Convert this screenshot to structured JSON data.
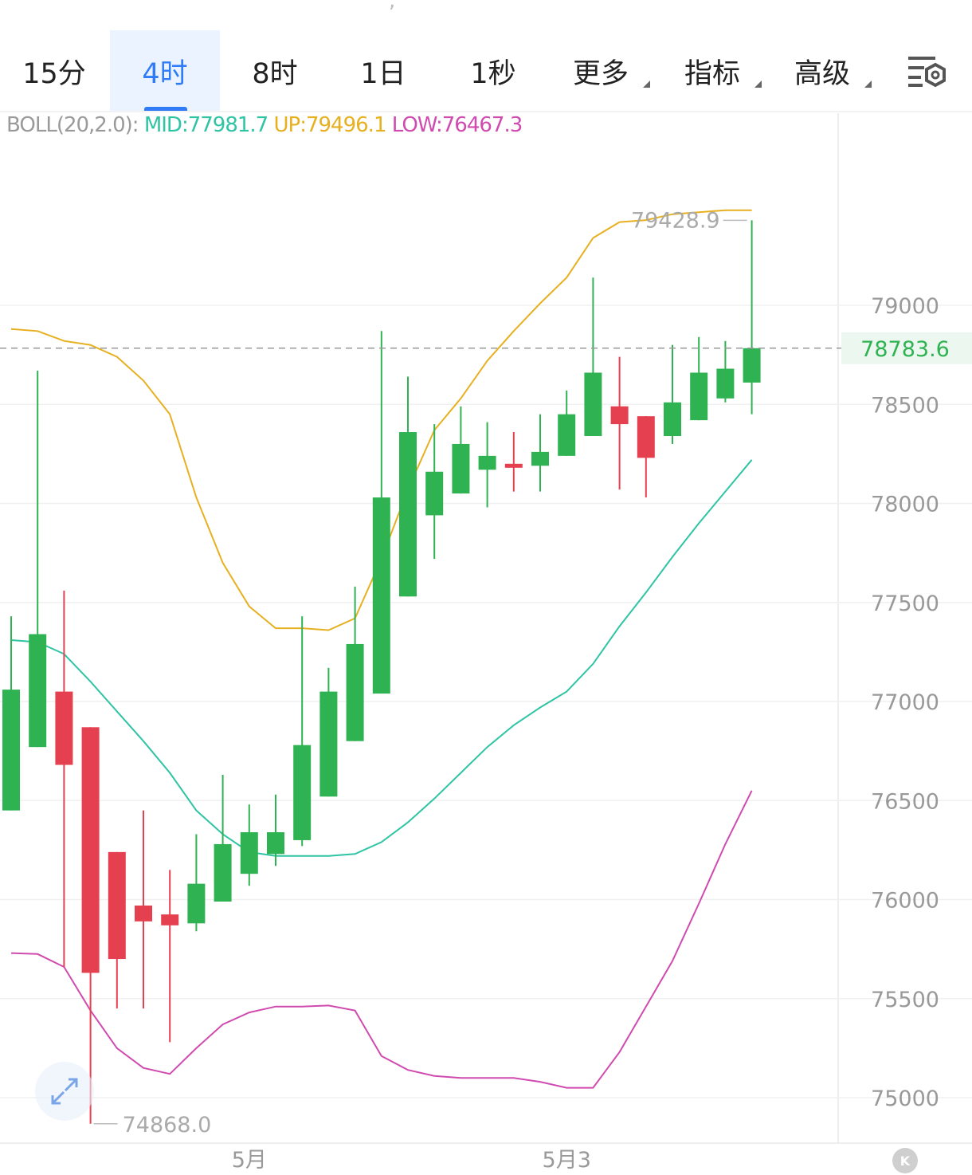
{
  "top_fragment": ",",
  "tabs": [
    {
      "label": "15分",
      "active": false,
      "dropdown": false
    },
    {
      "label": "4时",
      "active": true,
      "dropdown": false
    },
    {
      "label": "8时",
      "active": false,
      "dropdown": false
    },
    {
      "label": "1日",
      "active": false,
      "dropdown": false
    },
    {
      "label": "1秒",
      "active": false,
      "dropdown": false
    },
    {
      "label": "更多",
      "active": false,
      "dropdown": true
    },
    {
      "label": "指标",
      "active": false,
      "dropdown": true
    },
    {
      "label": "高级",
      "active": false,
      "dropdown": true
    }
  ],
  "settings_icon": "chart-settings-icon",
  "indicator": {
    "name": "BOLL(20,2.0):",
    "mid": "MID:77981.7",
    "up": "UP:79496.1",
    "low": "LOW:76467.3",
    "colors": {
      "name": "#9a9a9a",
      "mid": "#2ec4a4",
      "up": "#e6b020",
      "low": "#d04bb0"
    }
  },
  "expand_icon": "expand-arrows-icon",
  "badge_label": "K",
  "chart_data": {
    "type": "candlestick",
    "ylim": [
      74600,
      80350
    ],
    "yticks": [
      75000,
      75500,
      76000,
      76500,
      77000,
      77500,
      78000,
      78500,
      79000
    ],
    "ytick_labels": [
      "75000",
      "75500",
      "76000",
      "76500",
      "77000",
      "77500",
      "78000",
      "78500",
      "79000"
    ],
    "x_labels": [
      {
        "label": "5月",
        "index": 9
      },
      {
        "label": "5月3",
        "index": 21
      }
    ],
    "current_price": 78783.6,
    "current_price_label": "78783.6",
    "high_label": "79428.9",
    "low_label": "74868.0",
    "candles": [
      {
        "o": 76450,
        "h": 77430,
        "l": 76450,
        "c": 77060
      },
      {
        "o": 76770,
        "h": 78670,
        "l": 76770,
        "c": 77340
      },
      {
        "o": 77050,
        "h": 77560,
        "l": 75660,
        "c": 76680
      },
      {
        "o": 76870,
        "h": 76870,
        "l": 74868,
        "c": 75630
      },
      {
        "o": 76240,
        "h": 76240,
        "l": 75450,
        "c": 75700
      },
      {
        "o": 75970,
        "h": 76450,
        "l": 75450,
        "c": 75890
      },
      {
        "o": 75925,
        "h": 76150,
        "l": 75280,
        "c": 75870
      },
      {
        "o": 75880,
        "h": 76330,
        "l": 75840,
        "c": 76080
      },
      {
        "o": 75990,
        "h": 76630,
        "l": 75990,
        "c": 76280
      },
      {
        "o": 76130,
        "h": 76480,
        "l": 76070,
        "c": 76340
      },
      {
        "o": 76230,
        "h": 76530,
        "l": 76170,
        "c": 76340
      },
      {
        "o": 76300,
        "h": 77430,
        "l": 76270,
        "c": 76780
      },
      {
        "o": 76520,
        "h": 77170,
        "l": 76520,
        "c": 77050
      },
      {
        "o": 76800,
        "h": 77580,
        "l": 76800,
        "c": 77290
      },
      {
        "o": 77040,
        "h": 78870,
        "l": 77040,
        "c": 78030
      },
      {
        "o": 77530,
        "h": 78640,
        "l": 77530,
        "c": 78360
      },
      {
        "o": 77940,
        "h": 78400,
        "l": 77720,
        "c": 78160
      },
      {
        "o": 78050,
        "h": 78490,
        "l": 78050,
        "c": 78300
      },
      {
        "o": 78170,
        "h": 78410,
        "l": 77980,
        "c": 78240
      },
      {
        "o": 78200,
        "h": 78360,
        "l": 78060,
        "c": 78180
      },
      {
        "o": 78190,
        "h": 78450,
        "l": 78060,
        "c": 78260
      },
      {
        "o": 78240,
        "h": 78570,
        "l": 78240,
        "c": 78450
      },
      {
        "o": 78340,
        "h": 79140,
        "l": 78340,
        "c": 78660
      },
      {
        "o": 78490,
        "h": 78740,
        "l": 78070,
        "c": 78400
      },
      {
        "o": 78440,
        "h": 78440,
        "l": 78030,
        "c": 78230
      },
      {
        "o": 78340,
        "h": 78800,
        "l": 78300,
        "c": 78510
      },
      {
        "o": 78420,
        "h": 78840,
        "l": 78420,
        "c": 78660
      },
      {
        "o": 78530,
        "h": 78820,
        "l": 78510,
        "c": 78680
      },
      {
        "o": 78610,
        "h": 79428.9,
        "l": 78450,
        "c": 78783.6
      }
    ],
    "boll_up": [
      78880,
      78870,
      78820,
      78800,
      78740,
      78620,
      78450,
      78030,
      77700,
      77480,
      77370,
      77370,
      77360,
      77420,
      77720,
      78070,
      78370,
      78530,
      78720,
      78870,
      79010,
      79140,
      79340,
      79420,
      79430,
      79460,
      79470,
      79480,
      79480
    ],
    "boll_mid": [
      77310,
      77300,
      77240,
      77100,
      76950,
      76800,
      76640,
      76450,
      76330,
      76240,
      76220,
      76220,
      76220,
      76230,
      76290,
      76390,
      76510,
      76640,
      76770,
      76880,
      76970,
      77050,
      77190,
      77380,
      77550,
      77730,
      77900,
      78060,
      78220
    ],
    "boll_low": [
      75730,
      75725,
      75660,
      75440,
      75250,
      75150,
      75120,
      75250,
      75370,
      75430,
      75460,
      75460,
      75465,
      75440,
      75210,
      75140,
      75110,
      75100,
      75100,
      75100,
      75080,
      75050,
      75050,
      75230,
      75460,
      75690,
      75980,
      76280,
      76550
    ]
  }
}
